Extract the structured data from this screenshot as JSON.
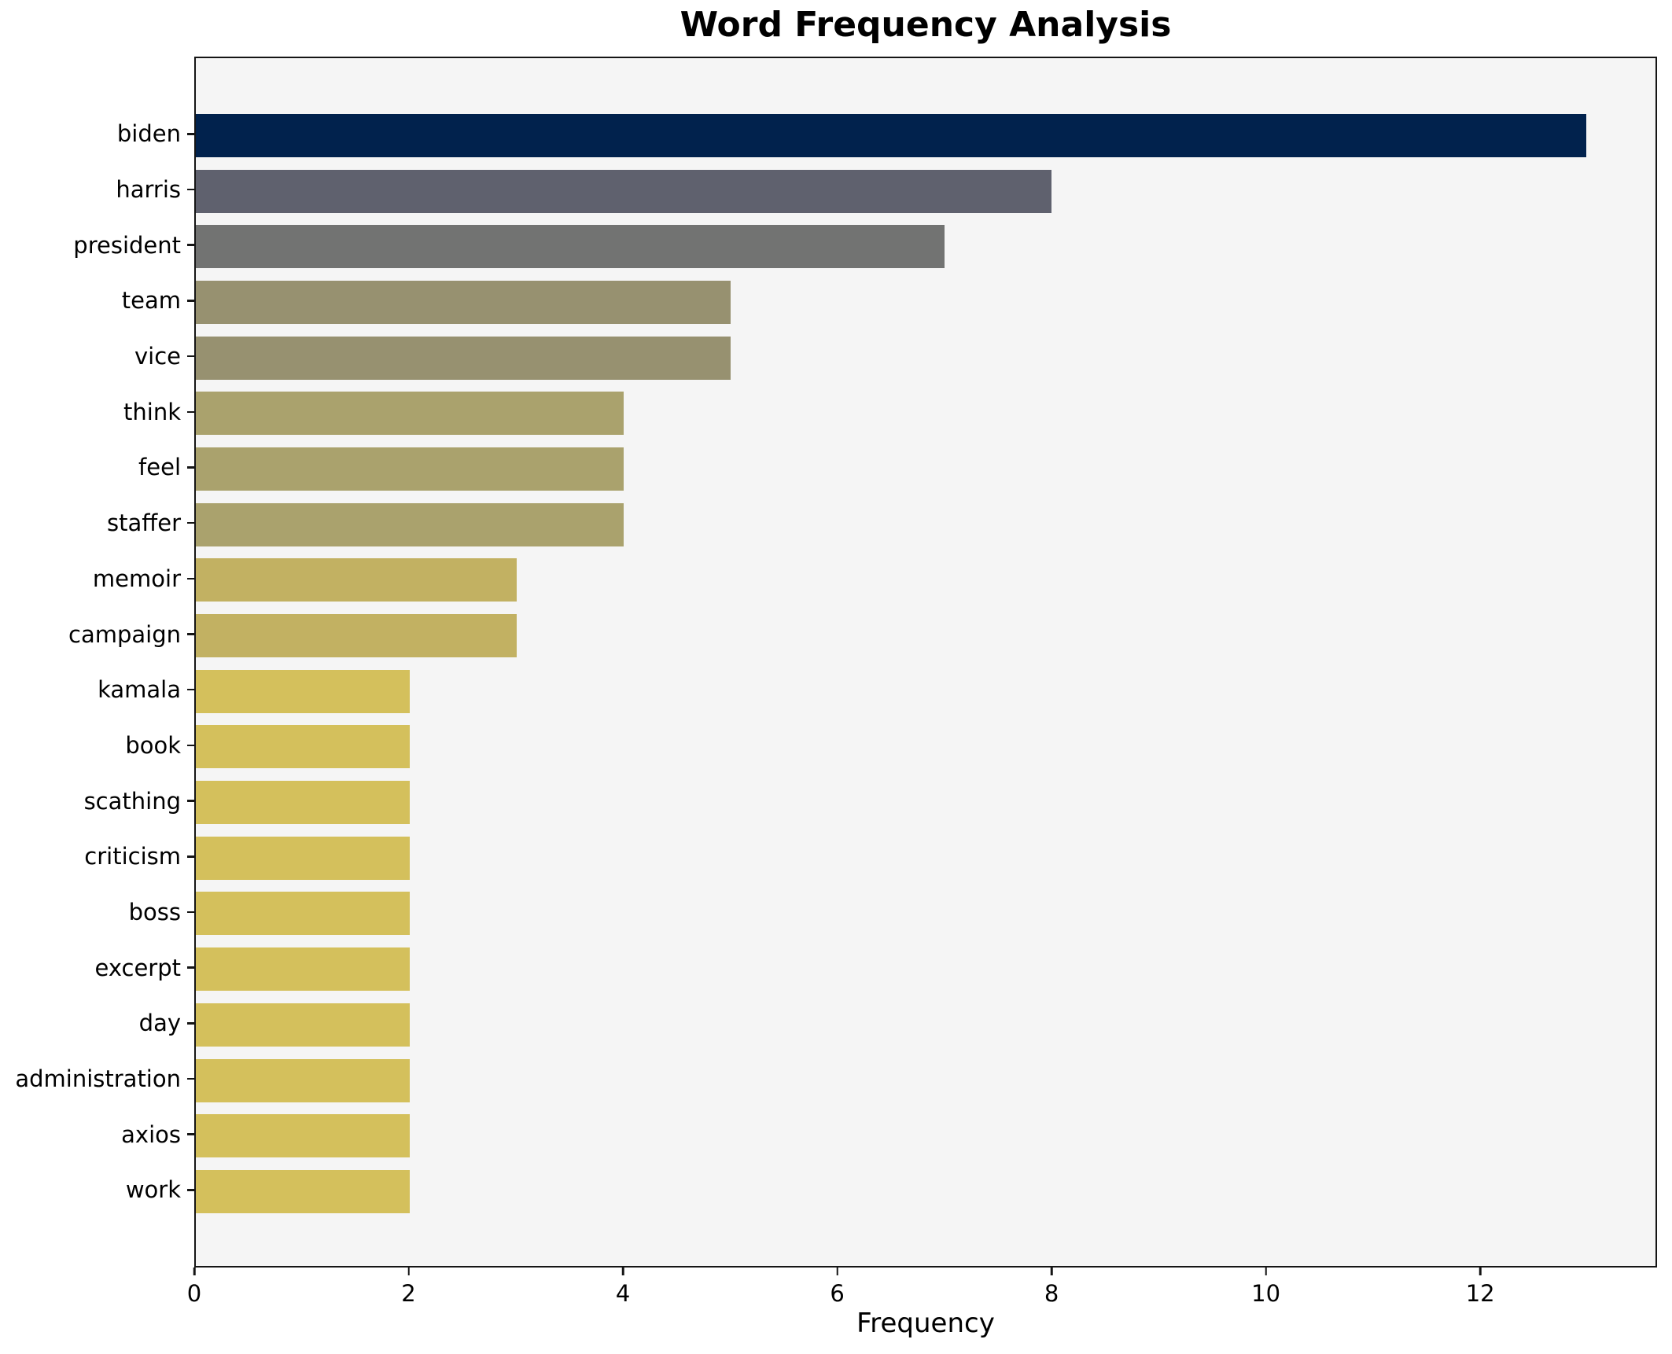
{
  "chart_data": {
    "type": "bar",
    "orientation": "horizontal",
    "title": "Word Frequency Analysis",
    "xlabel": "Frequency",
    "ylabel": "",
    "xlim": [
      0,
      13.65
    ],
    "xticks": [
      0,
      2,
      4,
      6,
      8,
      10,
      12
    ],
    "grid": false,
    "legend": "none",
    "plot_background": "#f5f5f5",
    "figure_background": "#ffffff",
    "spine_color": "#151515",
    "categories": [
      "biden",
      "harris",
      "president",
      "team",
      "vice",
      "think",
      "feel",
      "staffer",
      "memoir",
      "campaign",
      "kamala",
      "book",
      "scathing",
      "criticism",
      "boss",
      "excerpt",
      "day",
      "administration",
      "axios",
      "work"
    ],
    "values": [
      13,
      8,
      7,
      5,
      5,
      4,
      4,
      4,
      3,
      3,
      2,
      2,
      2,
      2,
      2,
      2,
      2,
      2,
      2,
      2
    ],
    "bar_colors": [
      "#01224d",
      "#5f616e",
      "#727372",
      "#979170",
      "#979170",
      "#aaa26d",
      "#aaa26d",
      "#aaa26d",
      "#c2b162",
      "#c2b162",
      "#d4c05c",
      "#d4c05c",
      "#d4c05c",
      "#d4c05c",
      "#d4c05c",
      "#d4c05c",
      "#d4c05c",
      "#d4c05c",
      "#d4c05c",
      "#d4c05c"
    ]
  }
}
